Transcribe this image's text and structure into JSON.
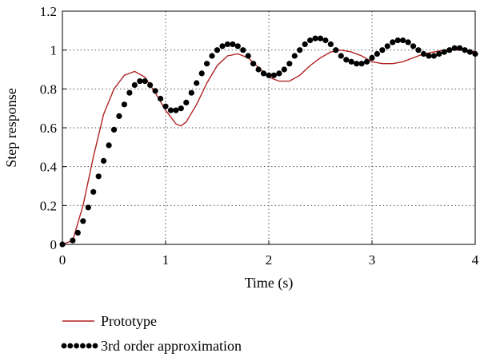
{
  "chart_data": {
    "type": "line",
    "xlabel": "Time (s)",
    "ylabel": "Step response",
    "xlim": [
      0,
      4
    ],
    "ylim": [
      0,
      1.2
    ],
    "x_ticks": [
      0,
      1,
      2,
      3,
      4
    ],
    "y_ticks": [
      0,
      0.2,
      0.4,
      0.6,
      0.8,
      1,
      1.2
    ],
    "x_tick_labels": [
      "0",
      "1",
      "2",
      "3",
      "4"
    ],
    "y_tick_labels": [
      "0",
      "0.2",
      "0.4",
      "0.6",
      "0.8",
      "1",
      "1.2"
    ],
    "grid": true,
    "legend_position": "bottom-left, below plot",
    "series": [
      {
        "name": "Prototype",
        "style": "solid",
        "color": "#b22222",
        "x": [
          0,
          0.1,
          0.2,
          0.3,
          0.4,
          0.5,
          0.6,
          0.7,
          0.8,
          0.9,
          1.0,
          1.1,
          1.15,
          1.2,
          1.3,
          1.4,
          1.5,
          1.6,
          1.7,
          1.8,
          1.9,
          2.0,
          2.1,
          2.2,
          2.3,
          2.4,
          2.5,
          2.6,
          2.7,
          2.8,
          2.9,
          3.0,
          3.1,
          3.2,
          3.3,
          3.4,
          3.5,
          3.6,
          3.7,
          3.8,
          3.9,
          4.0
        ],
        "y": [
          0,
          0.02,
          0.2,
          0.45,
          0.67,
          0.8,
          0.87,
          0.89,
          0.86,
          0.78,
          0.69,
          0.62,
          0.61,
          0.63,
          0.72,
          0.83,
          0.92,
          0.97,
          0.98,
          0.96,
          0.91,
          0.86,
          0.84,
          0.84,
          0.87,
          0.92,
          0.96,
          0.99,
          1.0,
          0.99,
          0.97,
          0.94,
          0.93,
          0.93,
          0.94,
          0.96,
          0.98,
          0.99,
          1.0,
          1.0,
          1.0,
          0.99
        ]
      },
      {
        "name": "3rd order approximation",
        "style": "dotted",
        "color": "#000000",
        "x": [
          0,
          0.1,
          0.15,
          0.2,
          0.25,
          0.3,
          0.35,
          0.4,
          0.45,
          0.5,
          0.55,
          0.6,
          0.65,
          0.7,
          0.75,
          0.8,
          0.85,
          0.9,
          0.95,
          1.0,
          1.05,
          1.1,
          1.15,
          1.2,
          1.25,
          1.3,
          1.35,
          1.4,
          1.45,
          1.5,
          1.55,
          1.6,
          1.65,
          1.7,
          1.75,
          1.8,
          1.85,
          1.9,
          1.95,
          2.0,
          2.05,
          2.1,
          2.15,
          2.2,
          2.25,
          2.3,
          2.35,
          2.4,
          2.45,
          2.5,
          2.55,
          2.6,
          2.65,
          2.7,
          2.75,
          2.8,
          2.85,
          2.9,
          2.95,
          3.0,
          3.05,
          3.1,
          3.15,
          3.2,
          3.25,
          3.3,
          3.35,
          3.4,
          3.45,
          3.5,
          3.55,
          3.6,
          3.65,
          3.7,
          3.75,
          3.8,
          3.85,
          3.9,
          3.95,
          4.0
        ],
        "y": [
          0,
          0.02,
          0.06,
          0.12,
          0.19,
          0.27,
          0.35,
          0.43,
          0.51,
          0.59,
          0.66,
          0.72,
          0.78,
          0.82,
          0.84,
          0.84,
          0.82,
          0.79,
          0.75,
          0.71,
          0.69,
          0.69,
          0.7,
          0.73,
          0.78,
          0.83,
          0.88,
          0.93,
          0.97,
          1.0,
          1.02,
          1.03,
          1.03,
          1.02,
          1.0,
          0.97,
          0.93,
          0.9,
          0.88,
          0.87,
          0.87,
          0.88,
          0.9,
          0.93,
          0.97,
          1.0,
          1.03,
          1.05,
          1.06,
          1.06,
          1.05,
          1.03,
          1.0,
          0.97,
          0.95,
          0.94,
          0.93,
          0.93,
          0.94,
          0.96,
          0.98,
          1.0,
          1.02,
          1.04,
          1.05,
          1.05,
          1.04,
          1.02,
          1.0,
          0.98,
          0.97,
          0.97,
          0.98,
          0.99,
          1.0,
          1.01,
          1.01,
          1.0,
          0.99,
          0.98
        ]
      }
    ]
  }
}
